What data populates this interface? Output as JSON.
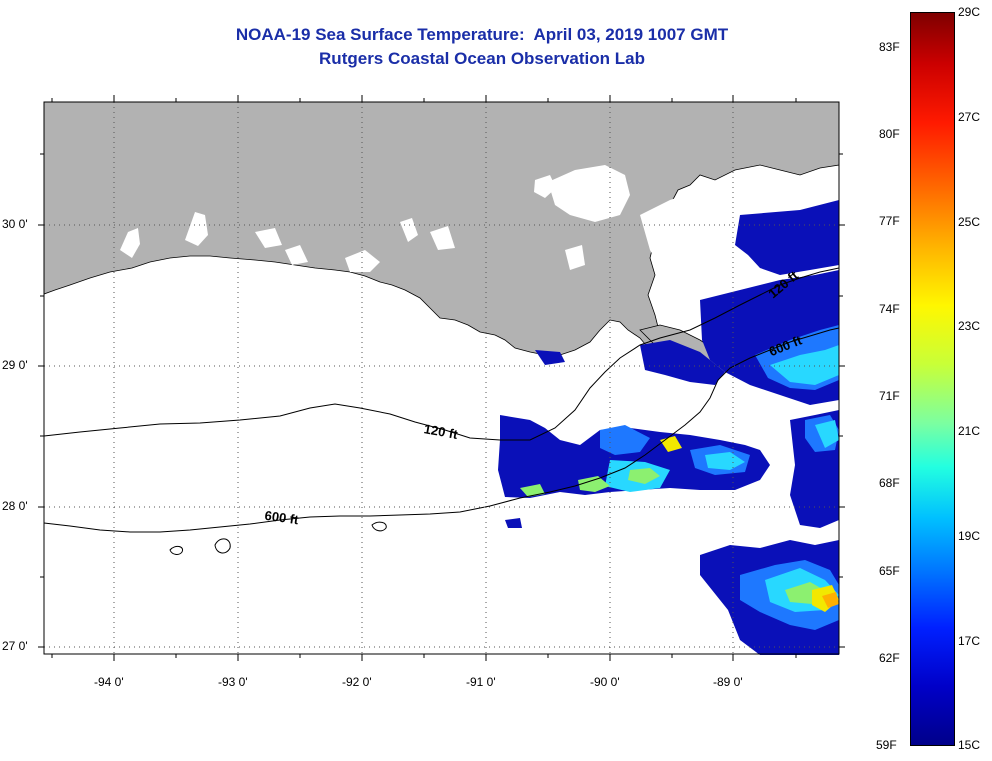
{
  "title": {
    "line1": "NOAA-19 Sea Surface Temperature:  April 03, 2019 1007 GMT",
    "line2": "Rutgers Coastal Ocean Observation Lab"
  },
  "map": {
    "lat_labels": [
      "30 0'",
      "29 0'",
      "28 0'",
      "27 0'"
    ],
    "lon_labels": [
      "-94 0'",
      "-93 0'",
      "-92 0'",
      "-91 0'",
      "-90 0'",
      "-89 0'"
    ],
    "contour_labels": {
      "c120_west": "120 ft",
      "c600_west": "600 ft",
      "c120_east": "120 ft",
      "c600_east": "600 ft"
    },
    "colors": {
      "land": "#b2b2b2",
      "sea_no_data": "#ffffff",
      "grid": "#000000"
    }
  },
  "colorbar": {
    "fahrenheit_labels": [
      "83F",
      "80F",
      "77F",
      "74F",
      "71F",
      "68F",
      "65F",
      "62F",
      "59F"
    ],
    "celsius_labels": [
      "29C",
      "27C",
      "25C",
      "23C",
      "21C",
      "19C",
      "17C",
      "15C"
    ],
    "colors": [
      "#7f0000",
      "#ff0000",
      "#ff8000",
      "#ffff00",
      "#80ff80",
      "#00ffff",
      "#0080ff",
      "#0000ff",
      "#00008b"
    ]
  }
}
